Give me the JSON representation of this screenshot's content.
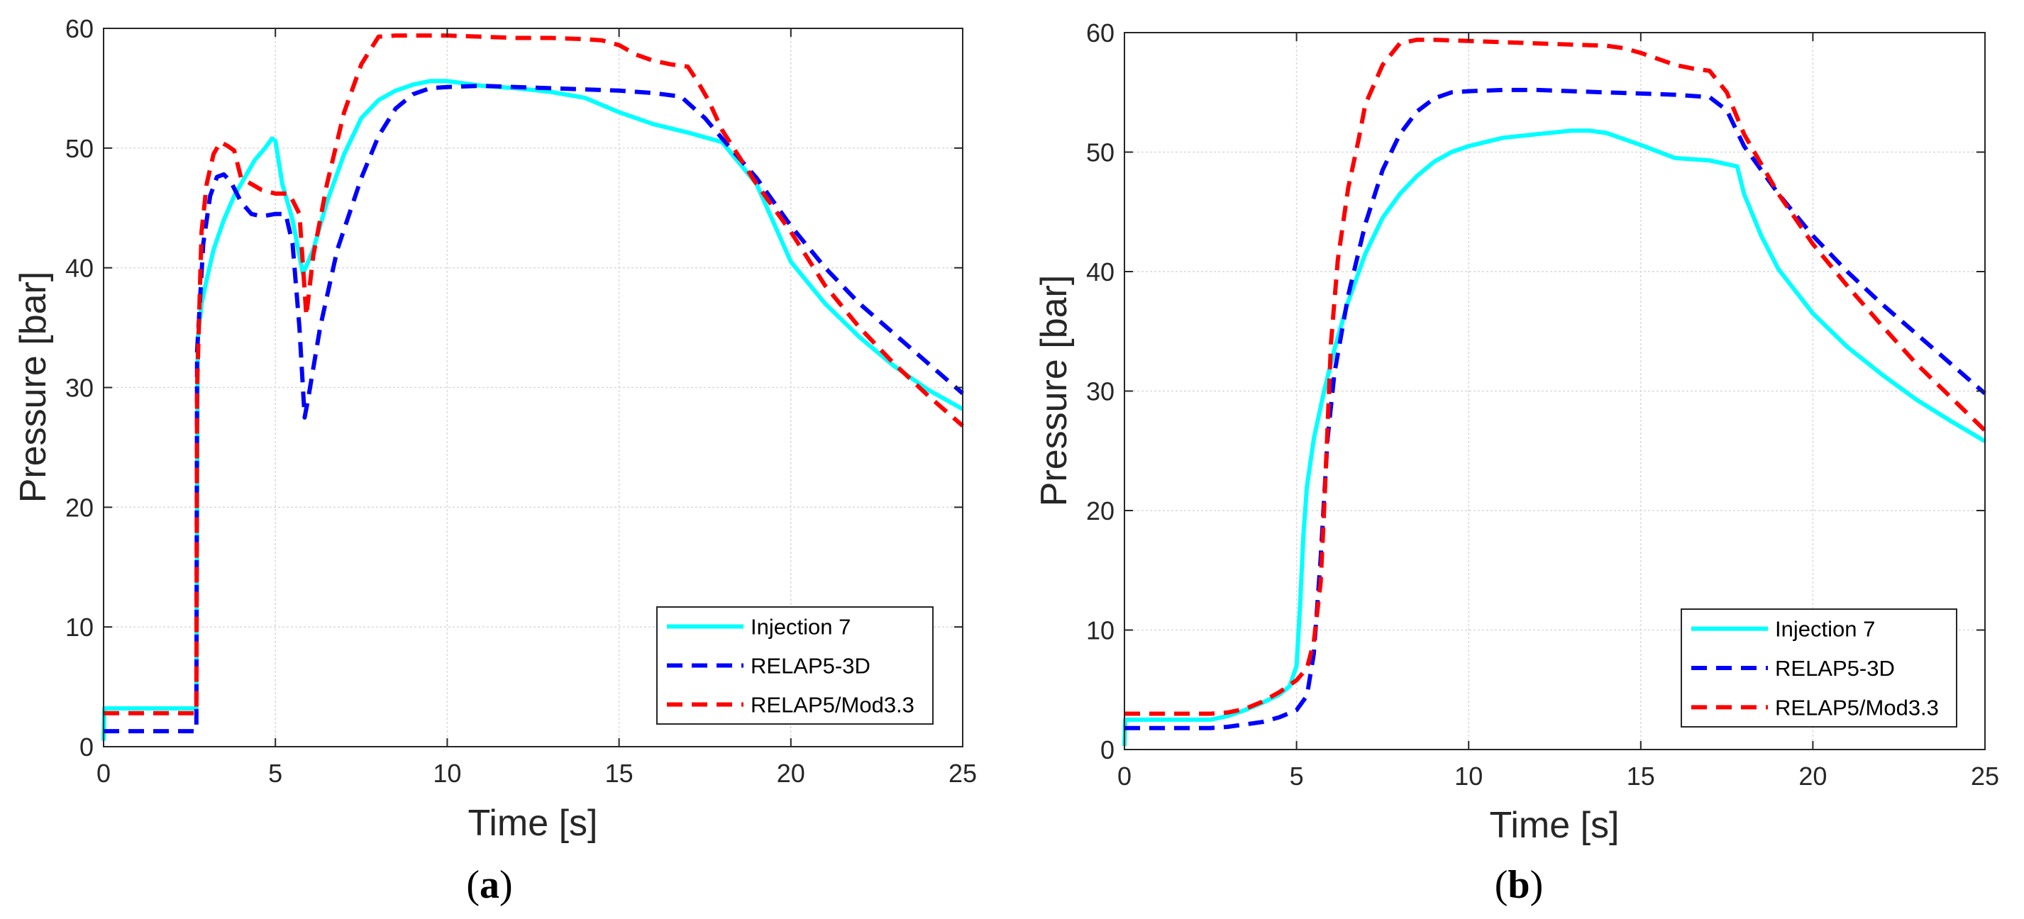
{
  "colors": {
    "Injection 7": "#00ffff",
    "RELAP5-3D": "#0000ff",
    "RELAP5/Mod3.3": "#ff0000"
  },
  "chart_data": [
    {
      "type": "line",
      "panel_label": "a",
      "xlabel": "Time [s]",
      "ylabel": "Pressure [bar]",
      "xlim": [
        0,
        25
      ],
      "ylim": [
        0,
        60
      ],
      "xticks": [
        0,
        5,
        10,
        15,
        20,
        25
      ],
      "yticks": [
        0,
        10,
        20,
        30,
        40,
        50,
        60
      ],
      "grid": true,
      "legend_position": "bottom-right",
      "series": [
        {
          "name": "Injection 7",
          "style": "solid",
          "x": [
            0,
            0.02,
            2.7,
            2.74,
            2.85,
            3.0,
            3.2,
            3.5,
            3.8,
            4.1,
            4.4,
            4.7,
            4.9,
            5.0,
            5.2,
            5.5,
            5.8,
            6.1,
            6.5,
            7.0,
            7.5,
            8.0,
            8.5,
            9.0,
            9.5,
            10.0,
            10.5,
            11.0,
            12.0,
            13.0,
            14.0,
            15.0,
            16.0,
            17.0,
            18.0,
            19.0,
            20.0,
            21.0,
            22.0,
            23.0,
            24.0,
            25.0
          ],
          "y": [
            0.5,
            3.2,
            3.2,
            34,
            37,
            39,
            41.5,
            44,
            46,
            47.5,
            49,
            50,
            50.8,
            50.6,
            47,
            44,
            39.5,
            41.5,
            45.5,
            49.5,
            52.5,
            54,
            54.8,
            55.3,
            55.6,
            55.6,
            55.4,
            55.2,
            55.0,
            54.7,
            54.2,
            53.0,
            52.0,
            51.3,
            50.5,
            47.0,
            40.5,
            37.0,
            34.2,
            31.8,
            29.8,
            28.2
          ]
        },
        {
          "name": "RELAP5-3D",
          "style": "dashed",
          "x": [
            0,
            2.7,
            2.72,
            2.9,
            3.1,
            3.3,
            3.5,
            3.7,
            4.0,
            4.3,
            4.6,
            5.0,
            5.3,
            5.5,
            5.7,
            5.85,
            5.95,
            6.3,
            6.8,
            7.5,
            8.0,
            8.5,
            9.0,
            9.5,
            10.0,
            11.0,
            12.0,
            13.0,
            14.0,
            15.0,
            16.0,
            16.8,
            17.5,
            18.0,
            19.0,
            20.0,
            21.0,
            22.0,
            23.0,
            24.0,
            25.0
          ],
          "y": [
            1.3,
            1.3,
            33,
            42,
            46,
            47.6,
            47.8,
            47.2,
            45.5,
            44.5,
            44.3,
            44.5,
            44.5,
            42,
            35,
            27.5,
            29,
            35,
            41.5,
            47.5,
            51,
            53.3,
            54.5,
            55.0,
            55.1,
            55.2,
            55.1,
            55.0,
            54.9,
            54.8,
            54.6,
            54.3,
            52.5,
            50.8,
            47.5,
            43.5,
            40.0,
            37.0,
            34.5,
            32.0,
            29.5
          ]
        },
        {
          "name": "RELAP5/Mod3.3",
          "style": "dashed",
          "x": [
            0,
            2.7,
            2.72,
            2.85,
            3.0,
            3.2,
            3.4,
            3.6,
            3.8,
            4.0,
            4.3,
            4.6,
            5.0,
            5.4,
            5.7,
            5.9,
            6.1,
            6.5,
            7.0,
            7.5,
            8.0,
            8.5,
            9.0,
            10.0,
            11.0,
            12.0,
            13.0,
            14.0,
            14.5,
            15.0,
            15.5,
            16.0,
            16.5,
            17.0,
            17.3,
            17.6,
            18.0,
            19.0,
            20.0,
            21.0,
            22.0,
            23.0,
            24.0,
            25.0
          ],
          "y": [
            2.8,
            2.8,
            30,
            43,
            47,
            49.5,
            50.5,
            50.2,
            49.8,
            47.5,
            47,
            46.5,
            46.2,
            46.2,
            44.5,
            36,
            41,
            47,
            53,
            57,
            59.3,
            59.4,
            59.4,
            59.4,
            59.3,
            59.2,
            59.2,
            59.1,
            59.0,
            58.6,
            57.8,
            57.3,
            57.0,
            56.8,
            55.5,
            54.0,
            51.5,
            47.0,
            43.0,
            38.5,
            35.0,
            32.0,
            29.3,
            26.8
          ]
        }
      ]
    },
    {
      "type": "line",
      "panel_label": "b",
      "xlabel": "Time [s]",
      "ylabel": "Pressure [bar]",
      "xlim": [
        0,
        25
      ],
      "ylim": [
        0,
        60
      ],
      "xticks": [
        0,
        5,
        10,
        15,
        20,
        25
      ],
      "yticks": [
        0,
        10,
        20,
        30,
        40,
        50,
        60
      ],
      "grid": true,
      "legend_position": "bottom-right",
      "series": [
        {
          "name": "Injection 7",
          "style": "solid",
          "x": [
            0,
            0.02,
            2.5,
            3.0,
            3.5,
            4.0,
            4.5,
            4.8,
            5.0,
            5.1,
            5.2,
            5.3,
            5.5,
            5.8,
            6.1,
            6.5,
            7.0,
            7.5,
            8.0,
            8.5,
            9.0,
            9.5,
            10.0,
            11.0,
            12.0,
            13.0,
            13.5,
            14.0,
            15.0,
            16.0,
            17.0,
            17.8,
            18.0,
            18.5,
            19.0,
            20.0,
            21.0,
            22.0,
            23.0,
            24.0,
            25.0
          ],
          "y": [
            0.3,
            2.5,
            2.5,
            2.8,
            3.3,
            3.9,
            4.6,
            5.3,
            7,
            12,
            18,
            22,
            26,
            30,
            33.5,
            37.5,
            41.5,
            44.5,
            46.5,
            48,
            49.2,
            50.0,
            50.5,
            51.2,
            51.5,
            51.8,
            51.8,
            51.6,
            50.6,
            49.5,
            49.3,
            48.8,
            46.5,
            43.0,
            40.2,
            36.5,
            33.7,
            31.4,
            29.3,
            27.5,
            25.8
          ]
        },
        {
          "name": "RELAP5-3D",
          "style": "dashed",
          "x": [
            0,
            2.5,
            3.0,
            3.5,
            4.0,
            4.5,
            5.0,
            5.3,
            5.5,
            5.7,
            5.9,
            6.1,
            6.5,
            7.0,
            7.5,
            8.0,
            8.5,
            9.0,
            9.5,
            10.0,
            11.0,
            12.0,
            13.0,
            14.0,
            15.0,
            16.0,
            17.0,
            17.5,
            18.0,
            19.0,
            20.0,
            21.0,
            22.0,
            23.0,
            24.0,
            25.0
          ],
          "y": [
            1.8,
            1.8,
            1.9,
            2.1,
            2.3,
            2.7,
            3.3,
            4.5,
            8,
            16,
            26,
            31.5,
            38,
            44,
            48.5,
            51.5,
            53.4,
            54.5,
            55.0,
            55.1,
            55.2,
            55.2,
            55.1,
            55.0,
            54.9,
            54.8,
            54.6,
            53.5,
            50.5,
            46.5,
            43.0,
            40.0,
            37.3,
            34.8,
            32.3,
            29.8
          ]
        },
        {
          "name": "RELAP5/Mod3.3",
          "style": "dashed",
          "x": [
            0,
            2.5,
            3.0,
            3.5,
            4.0,
            4.5,
            5.0,
            5.3,
            5.5,
            5.7,
            5.8,
            5.9,
            6.0,
            6.2,
            6.5,
            6.8,
            7.0,
            7.5,
            8.0,
            8.5,
            9.0,
            10.0,
            11.0,
            12.0,
            13.0,
            14.0,
            14.5,
            15.0,
            15.5,
            16.0,
            16.5,
            17.0,
            17.5,
            18.0,
            19.0,
            20.0,
            21.0,
            22.0,
            23.0,
            24.0,
            25.0
          ],
          "y": [
            3.0,
            3.0,
            3.1,
            3.4,
            4.0,
            4.8,
            5.8,
            6.8,
            9,
            14,
            20,
            27,
            34,
            41,
            47,
            51,
            54,
            57.3,
            59.1,
            59.4,
            59.4,
            59.3,
            59.2,
            59.1,
            59.0,
            58.9,
            58.7,
            58.3,
            57.8,
            57.3,
            57.0,
            56.8,
            55.0,
            51.5,
            46.5,
            42.3,
            38.8,
            35.5,
            32.3,
            29.5,
            26.7
          ]
        }
      ]
    }
  ]
}
